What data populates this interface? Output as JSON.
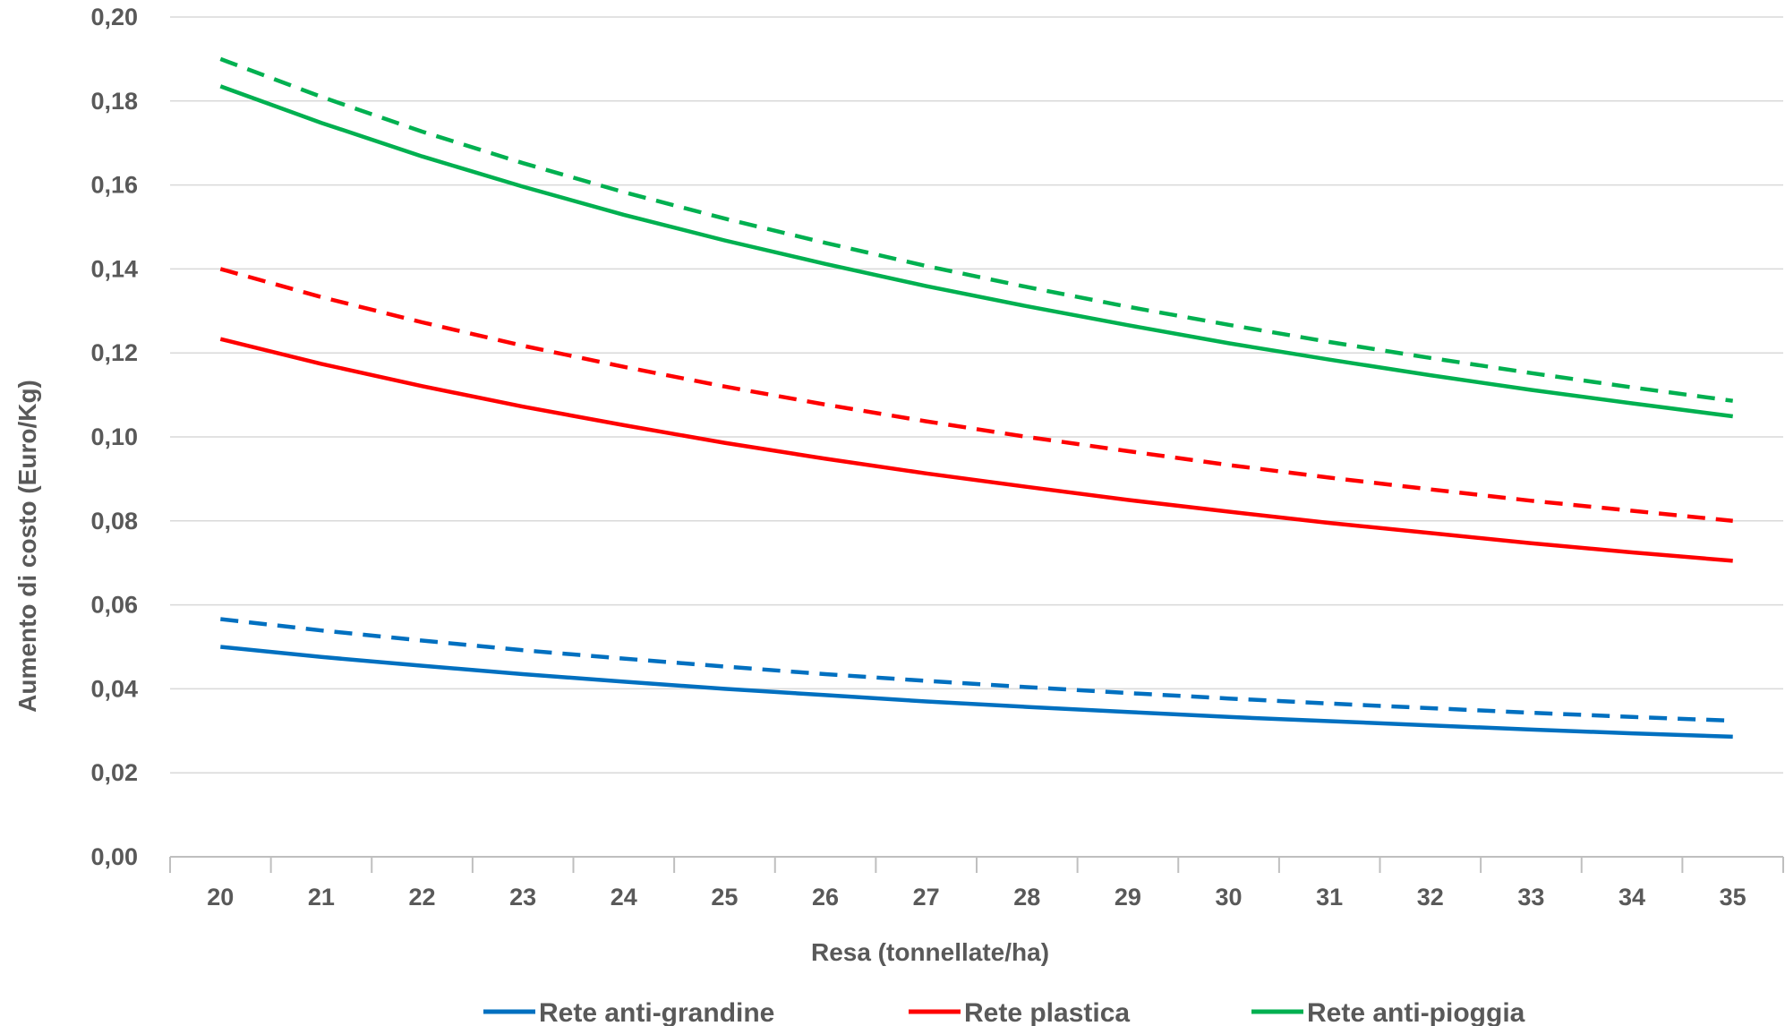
{
  "chart_data": {
    "type": "line",
    "title": "",
    "xlabel": "Resa (tonnellate/ha)",
    "ylabel": "Aumento di costo (Euro/Kg)",
    "x": [
      20,
      21,
      22,
      23,
      24,
      25,
      26,
      27,
      28,
      29,
      30,
      31,
      32,
      33,
      34,
      35
    ],
    "xlim": [
      19.5,
      35.5
    ],
    "ylim": [
      0,
      0.2
    ],
    "yticks": [
      "0,00",
      "0,02",
      "0,04",
      "0,06",
      "0,08",
      "0,10",
      "0,12",
      "0,14",
      "0,16",
      "0,18",
      "0,20"
    ],
    "xticks": [
      "20",
      "21",
      "22",
      "23",
      "24",
      "25",
      "26",
      "27",
      "28",
      "29",
      "30",
      "31",
      "32",
      "33",
      "34",
      "35"
    ],
    "grid": "horizontal",
    "legend_position": "bottom",
    "legend": [
      "Rete anti-grandine",
      "Rete plastica",
      "Rete anti-pioggia"
    ],
    "series": [
      {
        "name": "Rete anti-grandine",
        "color": "#0070C0",
        "dash": "solid",
        "values": [
          0.05,
          0.0476,
          0.0455,
          0.0435,
          0.0417,
          0.04,
          0.0385,
          0.037,
          0.0357,
          0.0345,
          0.0333,
          0.0323,
          0.0313,
          0.0303,
          0.0294,
          0.0286
        ]
      },
      {
        "color": "#0070C0",
        "dash": "dashed",
        "values": [
          0.0566,
          0.0539,
          0.0515,
          0.0492,
          0.0472,
          0.0453,
          0.0435,
          0.0419,
          0.0404,
          0.039,
          0.0377,
          0.0365,
          0.0354,
          0.0343,
          0.0333,
          0.0324
        ]
      },
      {
        "name": "Rete plastica",
        "color": "#FF0000",
        "dash": "solid",
        "values": [
          0.1233,
          0.1174,
          0.1121,
          0.1072,
          0.1028,
          0.0986,
          0.0948,
          0.0913,
          0.0881,
          0.085,
          0.0822,
          0.0795,
          0.0771,
          0.0747,
          0.0725,
          0.0705
        ]
      },
      {
        "color": "#FF0000",
        "dash": "dashed",
        "values": [
          0.14,
          0.1333,
          0.1273,
          0.1217,
          0.1167,
          0.112,
          0.1077,
          0.1037,
          0.1,
          0.0966,
          0.0933,
          0.0903,
          0.0875,
          0.0848,
          0.0824,
          0.08
        ]
      },
      {
        "name": "Rete anti-pioggia",
        "color": "#00B050",
        "dash": "solid",
        "values": [
          0.1835,
          0.1748,
          0.1668,
          0.1596,
          0.1529,
          0.1468,
          0.1412,
          0.1359,
          0.1311,
          0.1266,
          0.1223,
          0.1184,
          0.1147,
          0.1112,
          0.108,
          0.1049
        ]
      },
      {
        "color": "#00B050",
        "dash": "dashed",
        "values": [
          0.19,
          0.181,
          0.1727,
          0.1652,
          0.1583,
          0.152,
          0.1462,
          0.1407,
          0.1357,
          0.131,
          0.1267,
          0.1226,
          0.1188,
          0.1152,
          0.1118,
          0.1086
        ]
      }
    ]
  }
}
